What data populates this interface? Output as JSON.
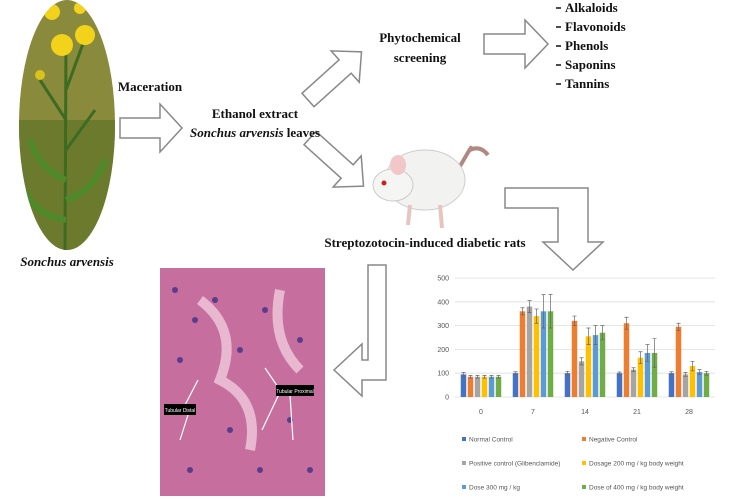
{
  "plant": {
    "caption": "Sonchus arvensis"
  },
  "steps": {
    "maceration": "Maceration",
    "extract_line1": "Ethanol extract",
    "extract_species": "Sonchus arvensis",
    "extract_part": "leaves",
    "screening_line1": "Phytochemical",
    "screening_line2": "screening",
    "compounds": [
      "Alkaloids",
      "Flavonoids",
      "Phenols",
      "Saponins",
      "Tannins"
    ],
    "model": "Streptozotocin-induced diabetic rats"
  },
  "histology": {
    "label_distal": "Tubular Distal",
    "label_proximal": "Tubular Proximal"
  },
  "chart_data": {
    "type": "bar",
    "categories": [
      "0",
      "7",
      "14",
      "21",
      "28"
    ],
    "ylim": [
      0,
      500
    ],
    "yticks": [
      0,
      100,
      200,
      300,
      400,
      500
    ],
    "grid": true,
    "series": [
      {
        "name": "Normal Control",
        "color": "#4472c4",
        "values": [
          95,
          100,
          100,
          100,
          100
        ],
        "errors": [
          8,
          6,
          8,
          5,
          6
        ]
      },
      {
        "name": "Negative Control",
        "color": "#ed7d31",
        "values": [
          85,
          360,
          320,
          310,
          295
        ],
        "errors": [
          6,
          15,
          20,
          25,
          15
        ]
      },
      {
        "name": "Positive control (Glibenclamide)",
        "color": "#a5a5a5",
        "values": [
          85,
          380,
          150,
          115,
          95
        ],
        "errors": [
          6,
          25,
          15,
          8,
          8
        ]
      },
      {
        "name": "Dosage 200 mg / kg body weight",
        "color": "#ffc000",
        "values": [
          85,
          340,
          255,
          165,
          130
        ],
        "errors": [
          6,
          30,
          35,
          25,
          20
        ]
      },
      {
        "name": "Dose 300 mg / kg",
        "color": "#5b9bd5",
        "values": [
          85,
          360,
          260,
          185,
          105
        ],
        "errors": [
          6,
          70,
          40,
          35,
          10
        ]
      },
      {
        "name": "Dose of 400 mg / kg body weight",
        "color": "#70ad47",
        "values": [
          85,
          360,
          270,
          185,
          100
        ],
        "errors": [
          6,
          70,
          30,
          60,
          8
        ]
      }
    ]
  }
}
